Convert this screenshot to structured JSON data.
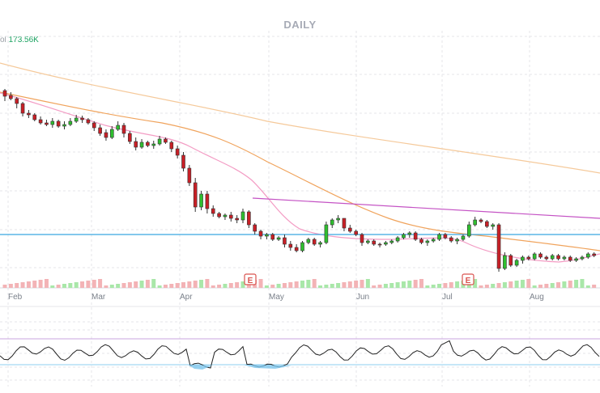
{
  "header": {
    "title": "DAILY",
    "volume_label": "ol",
    "volume_value": "173.56K"
  },
  "chart_data": {
    "type": "candlestick",
    "title": "DAILY",
    "x_ticks": [
      "Feb",
      "Mar",
      "Apr",
      "May",
      "Jun",
      "Jul",
      "Aug"
    ],
    "earnings_markers": [
      {
        "label": "E",
        "date": "late Apr"
      },
      {
        "label": "E",
        "date": "mid Jul"
      }
    ],
    "candles": [
      [
        1,
        112,
        119,
        125,
        110
      ],
      [
        2,
        118,
        122,
        124,
        114
      ],
      [
        3,
        122,
        128,
        134,
        120
      ],
      [
        4,
        128,
        140,
        144,
        126
      ],
      [
        5,
        140,
        142,
        146,
        136
      ],
      [
        6,
        142,
        148,
        150,
        140
      ],
      [
        7,
        148,
        152,
        154,
        144
      ],
      [
        8,
        152,
        154,
        156,
        148
      ],
      [
        9,
        154,
        150,
        158,
        146
      ],
      [
        10,
        150,
        156,
        158,
        148
      ],
      [
        11,
        156,
        154,
        160,
        150
      ],
      [
        12,
        154,
        150,
        156,
        146
      ],
      [
        13,
        150,
        146,
        152,
        142
      ],
      [
        14,
        146,
        148,
        152,
        143
      ],
      [
        15,
        148,
        152,
        154,
        146
      ],
      [
        16,
        152,
        158,
        162,
        150
      ],
      [
        17,
        158,
        165,
        168,
        154
      ],
      [
        18,
        164,
        170,
        174,
        160
      ],
      [
        19,
        170,
        160,
        172,
        156
      ],
      [
        20,
        160,
        155,
        162,
        150
      ],
      [
        21,
        155,
        165,
        170,
        152
      ],
      [
        22,
        165,
        175,
        178,
        162
      ],
      [
        23,
        175,
        182,
        186,
        170
      ],
      [
        24,
        182,
        176,
        184,
        172
      ],
      [
        25,
        176,
        180,
        182,
        174
      ],
      [
        26,
        180,
        178,
        184,
        174
      ],
      [
        27,
        178,
        172,
        180,
        168
      ],
      [
        28,
        172,
        176,
        178,
        170
      ],
      [
        29,
        176,
        184,
        188,
        174
      ],
      [
        30,
        184,
        192,
        196,
        180
      ],
      [
        31,
        192,
        208,
        212,
        188
      ],
      [
        32,
        208,
        226,
        230,
        204
      ],
      [
        33,
        226,
        256,
        262,
        220
      ],
      [
        34,
        256,
        240,
        260,
        236
      ],
      [
        35,
        240,
        258,
        264,
        236
      ],
      [
        36,
        258,
        264,
        268,
        254
      ],
      [
        37,
        264,
        268,
        270,
        262
      ],
      [
        38,
        268,
        266,
        272,
        264
      ],
      [
        39,
        266,
        270,
        274,
        262
      ],
      [
        40,
        270,
        272,
        276,
        266
      ],
      [
        41,
        272,
        262,
        276,
        258
      ],
      [
        42,
        262,
        278,
        282,
        260
      ],
      [
        43,
        278,
        286,
        290,
        276
      ],
      [
        44,
        286,
        292,
        296,
        284
      ],
      [
        45,
        292,
        290,
        296,
        288
      ],
      [
        46,
        290,
        296,
        298,
        288
      ],
      [
        47,
        296,
        294,
        298,
        292
      ],
      [
        48,
        294,
        302,
        306,
        290
      ],
      [
        49,
        302,
        306,
        310,
        298
      ],
      [
        50,
        306,
        310,
        312,
        302
      ],
      [
        51,
        310,
        300,
        312,
        298
      ],
      [
        52,
        300,
        296,
        302,
        294
      ],
      [
        53,
        296,
        302,
        304,
        294
      ],
      [
        54,
        302,
        300,
        306,
        298
      ],
      [
        55,
        300,
        278,
        302,
        274
      ],
      [
        56,
        278,
        272,
        282,
        270
      ],
      [
        57,
        272,
        270,
        276,
        266
      ],
      [
        58,
        270,
        282,
        286,
        270
      ],
      [
        59,
        282,
        286,
        288,
        278
      ],
      [
        60,
        286,
        290,
        292,
        284
      ],
      [
        61,
        290,
        300,
        304,
        288
      ],
      [
        62,
        300,
        298,
        302,
        296
      ],
      [
        63,
        298,
        302,
        304,
        296
      ],
      [
        64,
        302,
        302,
        306,
        300
      ],
      [
        65,
        302,
        300,
        304,
        298
      ],
      [
        66,
        300,
        298,
        302,
        296
      ],
      [
        67,
        298,
        294,
        300,
        292
      ],
      [
        68,
        294,
        290,
        296,
        288
      ],
      [
        69,
        290,
        288,
        294,
        286
      ],
      [
        70,
        288,
        296,
        298,
        286
      ],
      [
        71,
        296,
        300,
        302,
        294
      ],
      [
        72,
        300,
        298,
        304,
        296
      ],
      [
        73,
        298,
        296,
        300,
        294
      ],
      [
        74,
        296,
        290,
        298,
        288
      ],
      [
        75,
        290,
        294,
        296,
        288
      ],
      [
        76,
        294,
        298,
        300,
        292
      ],
      [
        77,
        298,
        296,
        302,
        294
      ],
      [
        78,
        296,
        292,
        298,
        290
      ],
      [
        79,
        292,
        278,
        294,
        274
      ],
      [
        80,
        278,
        272,
        280,
        268
      ],
      [
        81,
        272,
        274,
        276,
        270
      ],
      [
        82,
        274,
        280,
        282,
        272
      ],
      [
        83,
        280,
        278,
        284,
        276
      ],
      [
        84,
        278,
        332,
        336,
        276
      ],
      [
        85,
        332,
        316,
        334,
        312
      ],
      [
        86,
        316,
        328,
        330,
        314
      ],
      [
        87,
        328,
        322,
        330,
        320
      ],
      [
        88,
        322,
        318,
        326,
        316
      ],
      [
        89,
        318,
        320,
        322,
        316
      ],
      [
        90,
        320,
        314,
        322,
        312
      ],
      [
        91,
        314,
        318,
        320,
        312
      ],
      [
        92,
        318,
        320,
        322,
        316
      ],
      [
        93,
        320,
        316,
        322,
        314
      ],
      [
        94,
        316,
        320,
        322,
        314
      ],
      [
        95,
        320,
        318,
        322,
        316
      ],
      [
        96,
        318,
        322,
        324,
        316
      ],
      [
        97,
        322,
        320,
        324,
        318
      ],
      [
        98,
        320,
        318,
        322,
        316
      ],
      [
        99,
        318,
        314,
        320,
        312
      ],
      [
        100,
        314,
        316,
        318,
        312
      ]
    ],
    "grid": true,
    "panels": [
      "price",
      "volume",
      "oscillator"
    ]
  }
}
